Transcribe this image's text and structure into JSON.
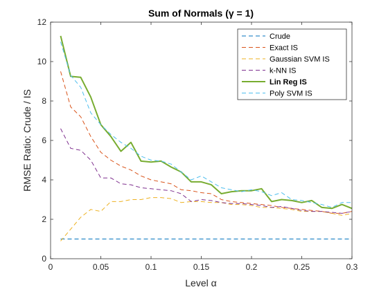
{
  "chart_data": {
    "type": "line",
    "title": "Sum of Normals (γ = 1)",
    "xlabel": "Level α",
    "ylabel": "RMSE Ratio: Crude / IS",
    "xlim": [
      0,
      0.3
    ],
    "ylim": [
      0,
      12
    ],
    "xticks": [
      0,
      0.05,
      0.1,
      0.15,
      0.2,
      0.25,
      0.3
    ],
    "xtick_labels": [
      "0",
      "0.05",
      "0.1",
      "0.15",
      "0.2",
      "0.25",
      "0.3"
    ],
    "yticks": [
      0,
      2,
      4,
      6,
      8,
      10,
      12
    ],
    "ytick_labels": [
      "0",
      "2",
      "4",
      "6",
      "8",
      "10",
      "12"
    ],
    "grid": false,
    "legend_position": "top-right",
    "x": [
      0.01,
      0.02,
      0.03,
      0.04,
      0.05,
      0.06,
      0.07,
      0.08,
      0.09,
      0.1,
      0.11,
      0.12,
      0.13,
      0.14,
      0.15,
      0.16,
      0.17,
      0.18,
      0.19,
      0.2,
      0.21,
      0.22,
      0.23,
      0.24,
      0.25,
      0.26,
      0.27,
      0.28,
      0.29,
      0.3
    ],
    "series": [
      {
        "name": "Crude",
        "color": "#0072bd",
        "style": "dashed",
        "values": [
          1,
          1,
          1,
          1,
          1,
          1,
          1,
          1,
          1,
          1,
          1,
          1,
          1,
          1,
          1,
          1,
          1,
          1,
          1,
          1,
          1,
          1,
          1,
          1,
          1,
          1,
          1,
          1,
          1,
          1
        ]
      },
      {
        "name": "Exact IS",
        "color": "#d95319",
        "style": "dashed",
        "values": [
          9.5,
          7.7,
          7.2,
          6.2,
          5.4,
          5.0,
          4.7,
          4.5,
          4.2,
          4.0,
          3.9,
          3.8,
          3.5,
          3.45,
          3.35,
          3.3,
          3.0,
          2.9,
          2.85,
          2.8,
          2.75,
          2.7,
          2.6,
          2.55,
          2.5,
          2.45,
          2.4,
          2.3,
          2.3,
          2.4
        ]
      },
      {
        "name": "Gaussian SVM IS",
        "color": "#edb120",
        "style": "dashed",
        "values": [
          0.9,
          1.5,
          2.1,
          2.5,
          2.4,
          2.9,
          2.9,
          3.0,
          3.0,
          3.1,
          3.1,
          3.05,
          2.85,
          2.9,
          2.9,
          2.85,
          2.85,
          2.75,
          2.75,
          2.7,
          2.6,
          2.6,
          2.55,
          2.5,
          2.4,
          2.4,
          2.4,
          2.3,
          2.2,
          2.3
        ]
      },
      {
        "name": "k-NN IS",
        "color": "#7e2f8e",
        "style": "dashed",
        "values": [
          6.6,
          5.6,
          5.5,
          5.0,
          4.1,
          4.1,
          3.8,
          3.75,
          3.6,
          3.55,
          3.5,
          3.45,
          3.3,
          2.9,
          3.0,
          2.95,
          2.85,
          2.8,
          2.8,
          2.75,
          2.7,
          2.6,
          2.65,
          2.55,
          2.45,
          2.4,
          2.4,
          2.35,
          2.3,
          2.4
        ]
      },
      {
        "name": "Lin Reg IS",
        "color": "#77ac30",
        "style": "solid",
        "values": [
          11.3,
          9.25,
          9.2,
          8.2,
          6.8,
          6.2,
          5.45,
          5.9,
          4.95,
          4.9,
          4.95,
          4.65,
          4.4,
          3.9,
          3.9,
          3.75,
          3.3,
          3.4,
          3.45,
          3.45,
          3.55,
          2.9,
          3.0,
          2.95,
          2.85,
          2.95,
          2.6,
          2.55,
          2.75,
          2.55
        ]
      },
      {
        "name": "Poly SVM IS",
        "color": "#4dbeee",
        "style": "dashed",
        "values": [
          11.0,
          9.3,
          8.7,
          7.4,
          6.8,
          6.3,
          5.9,
          5.6,
          5.2,
          5.0,
          4.95,
          4.8,
          4.4,
          4.0,
          4.2,
          3.9,
          3.6,
          3.5,
          3.4,
          3.5,
          3.4,
          3.2,
          3.35,
          3.0,
          2.95,
          2.85,
          2.75,
          2.6,
          2.85,
          2.85
        ]
      }
    ]
  }
}
